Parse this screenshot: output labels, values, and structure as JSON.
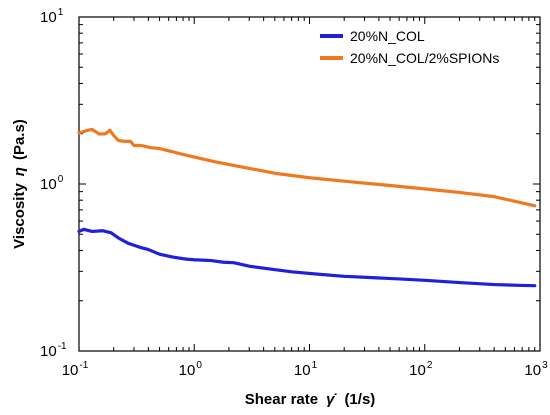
{
  "chart_data": {
    "type": "line",
    "xlabel": "Shear rate",
    "xsymbol": "γ̇",
    "xunit": "(1/s)",
    "ylabel": "Viscosity",
    "ysymbol": "η",
    "yunit": "(Pa.s)",
    "xscale": "log",
    "yscale": "log",
    "xlim": [
      0.1,
      1000
    ],
    "ylim": [
      0.1,
      10
    ],
    "x_ticks": [
      {
        "base": "10",
        "exp": "-1"
      },
      {
        "base": "10",
        "exp": "0"
      },
      {
        "base": "10",
        "exp": "1"
      },
      {
        "base": "10",
        "exp": "2"
      },
      {
        "base": "10",
        "exp": "3"
      }
    ],
    "y_ticks": [
      {
        "base": "10",
        "exp": "-1"
      },
      {
        "base": "10",
        "exp": "0"
      },
      {
        "base": "10",
        "exp": "1"
      }
    ],
    "grid": false,
    "legend_position": "top-right",
    "series": [
      {
        "name": "20%N_COL",
        "color": "#1f1fdc",
        "x": [
          0.1,
          0.11,
          0.13,
          0.16,
          0.19,
          0.22,
          0.27,
          0.33,
          0.4,
          0.5,
          0.65,
          0.85,
          1.0,
          1.4,
          1.8,
          2.2,
          3.0,
          4.5,
          7,
          12,
          20,
          35,
          60,
          100,
          200,
          400,
          700,
          900
        ],
        "y": [
          0.52,
          0.535,
          0.52,
          0.525,
          0.51,
          0.475,
          0.44,
          0.42,
          0.405,
          0.38,
          0.365,
          0.355,
          0.352,
          0.348,
          0.34,
          0.338,
          0.322,
          0.31,
          0.298,
          0.288,
          0.28,
          0.275,
          0.27,
          0.265,
          0.257,
          0.25,
          0.247,
          0.246
        ]
      },
      {
        "name": "20%N_COL/2%SPIONs",
        "color": "#f07820",
        "x": [
          0.1,
          0.12,
          0.13,
          0.15,
          0.17,
          0.185,
          0.2,
          0.22,
          0.25,
          0.28,
          0.3,
          0.35,
          0.42,
          0.5,
          0.6,
          0.75,
          1.0,
          1.5,
          2.5,
          5,
          10,
          20,
          50,
          100,
          200,
          400,
          700,
          900
        ],
        "y": [
          2.02,
          2.1,
          2.12,
          1.99,
          2.0,
          2.1,
          1.95,
          1.82,
          1.8,
          1.8,
          1.7,
          1.7,
          1.65,
          1.63,
          1.58,
          1.52,
          1.45,
          1.36,
          1.27,
          1.16,
          1.09,
          1.04,
          0.98,
          0.935,
          0.89,
          0.84,
          0.77,
          0.74
        ]
      }
    ]
  }
}
